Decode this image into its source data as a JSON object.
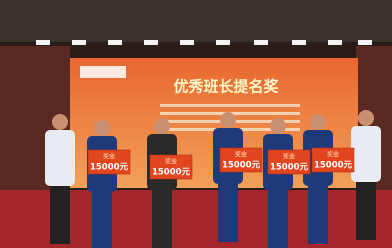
{
  "screen": {
    "title": "优秀班长提名奖"
  },
  "boards": [
    {
      "label": "奖金",
      "amount": "15000元"
    },
    {
      "label": "奖金",
      "amount": "15000元"
    },
    {
      "label": "奖金",
      "amount": "15000元"
    },
    {
      "label": "奖金",
      "amount": "15000元"
    },
    {
      "label": "奖金",
      "amount": "15000元"
    }
  ]
}
